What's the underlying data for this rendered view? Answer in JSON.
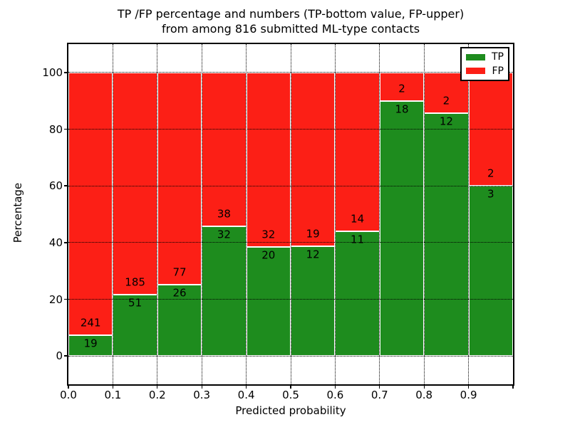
{
  "figure": {
    "title_line1": "TP /FP percentage and numbers (TP-bottom value, FP-upper)",
    "title_line2": "from among 816 submitted ML-type contacts"
  },
  "chart_data": {
    "type": "bar",
    "stacked": true,
    "normalized": "each bar stacked to 100%",
    "title": "TP /FP percentage and numbers (TP-bottom value, FP-upper) from among 816 submitted ML-type contacts",
    "xlabel": "Predicted probability",
    "ylabel": "Percentage",
    "total_contacts": 816,
    "bin_width": 0.1,
    "x_tick_labels": [
      "0.0",
      "0.1",
      "0.2",
      "0.3",
      "0.4",
      "0.5",
      "0.6",
      "0.7",
      "0.8",
      "0.9"
    ],
    "y_ticks": [
      0,
      20,
      40,
      60,
      80,
      100
    ],
    "xlim": [
      0.0,
      1.0
    ],
    "ylim": [
      -10,
      110
    ],
    "grid": {
      "on": true,
      "style": "dotted",
      "color": "#000000"
    },
    "legend": {
      "position": "upper right",
      "entries": [
        "TP",
        "FP"
      ]
    },
    "series": [
      {
        "name": "TP",
        "color": "#1e8c1e",
        "counts": [
          19,
          51,
          26,
          32,
          20,
          12,
          11,
          18,
          12,
          3
        ]
      },
      {
        "name": "FP",
        "color": "#fc1f16",
        "counts": [
          241,
          185,
          77,
          38,
          32,
          19,
          14,
          2,
          2,
          2
        ]
      }
    ],
    "tp_percent_heights": [
      7.31,
      21.61,
      25.24,
      45.71,
      38.46,
      38.71,
      44.0,
      90.0,
      85.71,
      60.0
    ]
  }
}
